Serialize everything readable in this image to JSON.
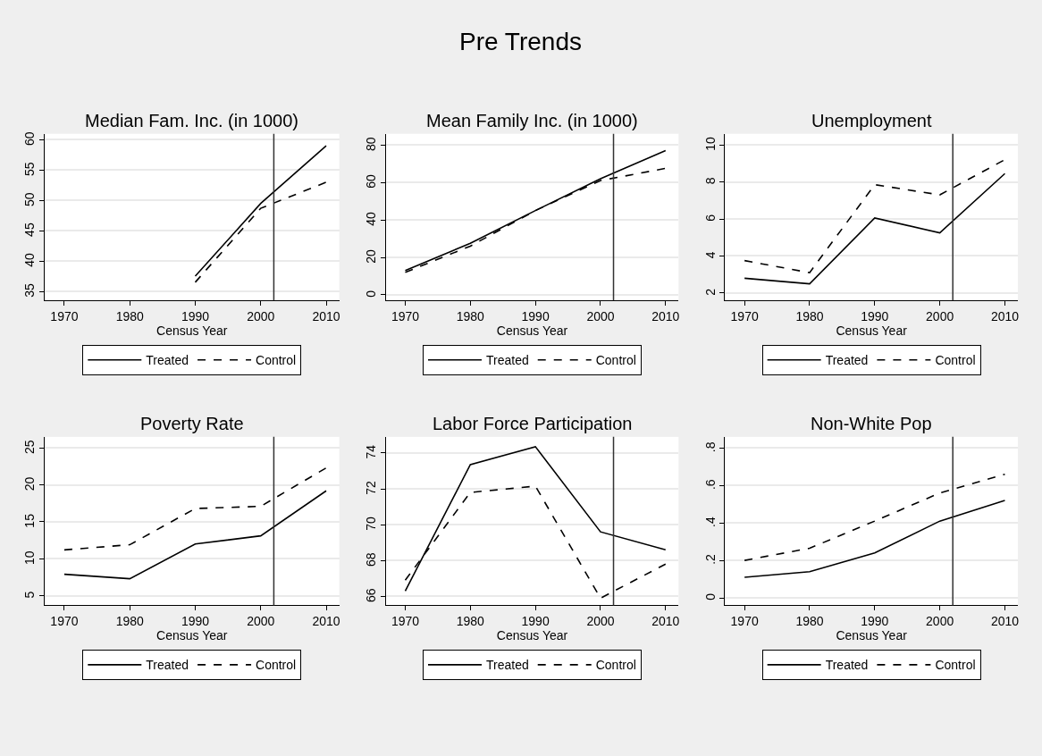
{
  "chart_data": [
    {
      "type": "line",
      "title": "Median Fam. Inc. (in 1000)",
      "annotations": [
        "Pre Trends"
      ],
      "xlabel": "Census Year",
      "x": [
        1990,
        2000,
        2010
      ],
      "xlim": [
        1967,
        2012
      ],
      "xticks": [
        1970,
        1980,
        1990,
        2000,
        2010
      ],
      "ylim": [
        33.5,
        61
      ],
      "yticks": [
        35,
        40,
        45,
        50,
        55,
        60
      ],
      "grid": "y",
      "legend": "bottom",
      "marker": "none",
      "ref_lines": [
        {
          "axis": "x",
          "value": 2002,
          "color": "#333333"
        }
      ],
      "series": [
        {
          "name": "Treated",
          "color": "#000000",
          "line_style": "solid",
          "values": [
            37.5,
            49.5,
            59
          ]
        },
        {
          "name": "Control",
          "color": "#000000",
          "line_style": "dashed",
          "values": [
            36.5,
            48.7,
            53
          ]
        }
      ]
    },
    {
      "type": "line",
      "title": "Mean Family Inc. (in 1000)",
      "xlabel": "Census Year",
      "x": [
        1970,
        1980,
        1990,
        2000,
        2010
      ],
      "xlim": [
        1967,
        2012
      ],
      "xticks": [
        1970,
        1980,
        1990,
        2000,
        2010
      ],
      "ylim": [
        -3,
        86
      ],
      "yticks": [
        0,
        20,
        40,
        60,
        80
      ],
      "grid": "y",
      "legend": "bottom",
      "marker": "none",
      "ref_lines": [
        {
          "axis": "x",
          "value": 2002,
          "color": "#333333"
        }
      ],
      "series": [
        {
          "name": "Treated",
          "color": "#000000",
          "line_style": "solid",
          "values": [
            13,
            27.5,
            45,
            62,
            77
          ]
        },
        {
          "name": "Control",
          "color": "#000000",
          "line_style": "dashed",
          "values": [
            12,
            26,
            45,
            61,
            67.5
          ]
        }
      ]
    },
    {
      "type": "line",
      "title": "Unemployment",
      "xlabel": "Census Year",
      "x": [
        1970,
        1980,
        1990,
        2000,
        2010
      ],
      "xlim": [
        1967,
        2012
      ],
      "xticks": [
        1970,
        1980,
        1990,
        2000,
        2010
      ],
      "ylim": [
        1.6,
        10.6
      ],
      "yticks": [
        2,
        4,
        6,
        8,
        10
      ],
      "grid": "y",
      "legend": "bottom",
      "marker": "none",
      "ref_lines": [
        {
          "axis": "x",
          "value": 2002,
          "color": "#333333"
        }
      ],
      "series": [
        {
          "name": "Treated",
          "color": "#000000",
          "line_style": "solid",
          "values": [
            2.8,
            2.5,
            6.05,
            5.25,
            8.45
          ]
        },
        {
          "name": "Control",
          "color": "#000000",
          "line_style": "dashed",
          "values": [
            3.75,
            3.1,
            7.85,
            7.3,
            9.2
          ]
        }
      ]
    },
    {
      "type": "line",
      "title": "Poverty Rate",
      "xlabel": "Census Year",
      "x": [
        1970,
        1980,
        1990,
        2000,
        2010
      ],
      "xlim": [
        1967,
        2012
      ],
      "xticks": [
        1970,
        1980,
        1990,
        2000,
        2010
      ],
      "ylim": [
        3.7,
        26.5
      ],
      "yticks": [
        5,
        10,
        15,
        20,
        25
      ],
      "grid": "y",
      "legend": "bottom",
      "marker": "none",
      "ref_lines": [
        {
          "axis": "x",
          "value": 2002,
          "color": "#333333"
        }
      ],
      "series": [
        {
          "name": "Treated",
          "color": "#000000",
          "line_style": "solid",
          "values": [
            7.9,
            7.3,
            12,
            13.1,
            19.2
          ]
        },
        {
          "name": "Control",
          "color": "#000000",
          "line_style": "dashed",
          "values": [
            11.2,
            11.9,
            16.8,
            17.1,
            22.3
          ]
        }
      ]
    },
    {
      "type": "line",
      "title": "Labor Force Participation",
      "xlabel": "Census Year",
      "x": [
        1970,
        1980,
        1990,
        2000,
        2010
      ],
      "xlim": [
        1967,
        2012
      ],
      "xticks": [
        1970,
        1980,
        1990,
        2000,
        2010
      ],
      "ylim": [
        65.5,
        74.9
      ],
      "yticks": [
        66,
        68,
        70,
        72,
        74
      ],
      "grid": "y",
      "legend": "bottom",
      "marker": "none",
      "ref_lines": [
        {
          "axis": "x",
          "value": 2002,
          "color": "#333333"
        }
      ],
      "series": [
        {
          "name": "Treated",
          "color": "#000000",
          "line_style": "solid",
          "values": [
            66.3,
            73.35,
            74.35,
            69.6,
            68.6
          ]
        },
        {
          "name": "Control",
          "color": "#000000",
          "line_style": "dashed",
          "values": [
            66.9,
            71.8,
            72.15,
            65.9,
            67.8
          ]
        }
      ]
    },
    {
      "type": "line",
      "title": "Non-White Pop",
      "xlabel": "Census Year",
      "x": [
        1970,
        1980,
        1990,
        2000,
        2010
      ],
      "xlim": [
        1967,
        2012
      ],
      "xticks": [
        1970,
        1980,
        1990,
        2000,
        2010
      ],
      "ylim": [
        -0.04,
        0.86
      ],
      "yticks": [
        0,
        {
          "value": 0.2,
          "label": ".2"
        },
        {
          "value": 0.4,
          "label": ".4"
        },
        {
          "value": 0.6,
          "label": ".6"
        },
        {
          "value": 0.8,
          "label": ".8"
        }
      ],
      "grid": "y",
      "legend": "bottom",
      "marker": "none",
      "ref_lines": [
        {
          "axis": "x",
          "value": 2002,
          "color": "#333333"
        }
      ],
      "series": [
        {
          "name": "Treated",
          "color": "#000000",
          "line_style": "solid",
          "values": [
            0.11,
            0.14,
            0.24,
            0.41,
            0.52
          ]
        },
        {
          "name": "Control",
          "color": "#000000",
          "line_style": "dashed",
          "values": [
            0.2,
            0.265,
            0.41,
            0.56,
            0.66
          ]
        }
      ]
    }
  ]
}
